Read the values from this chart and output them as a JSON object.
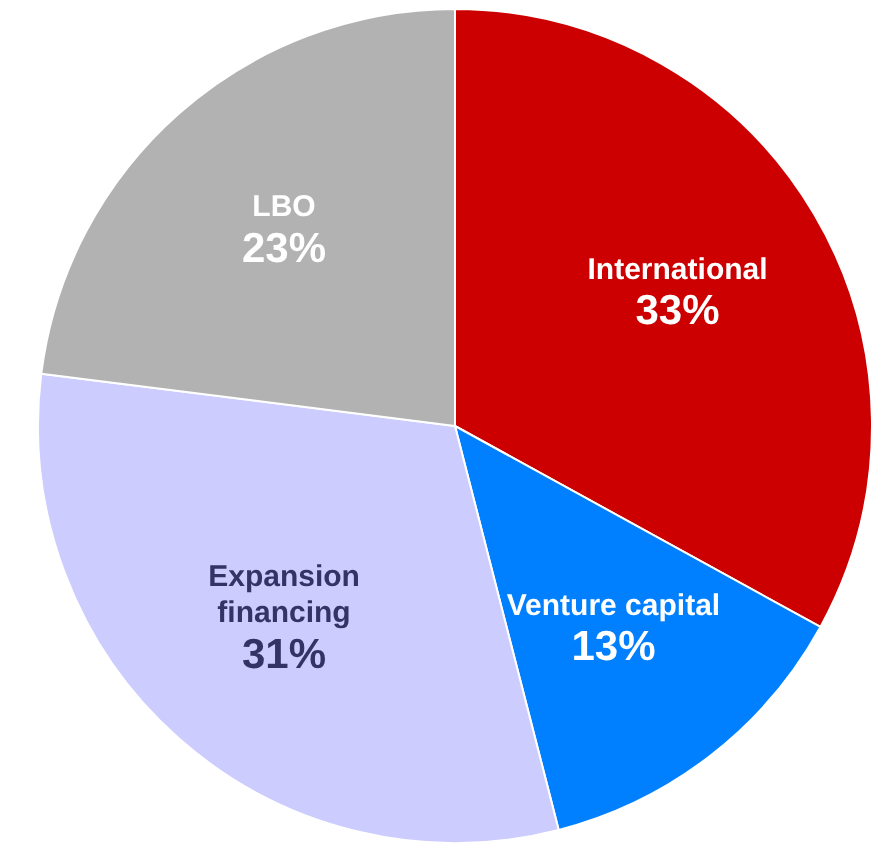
{
  "chart_data": {
    "type": "pie",
    "categories": [
      "International",
      "Venture capital",
      "Expansion financing",
      "LBO"
    ],
    "values": [
      33,
      13,
      31,
      23
    ],
    "value_labels": [
      "33%",
      "13%",
      "31%",
      "23%"
    ],
    "colors": [
      "#cc0000",
      "#0080ff",
      "#ccccff",
      "#b2b2b2"
    ],
    "legend": false
  }
}
